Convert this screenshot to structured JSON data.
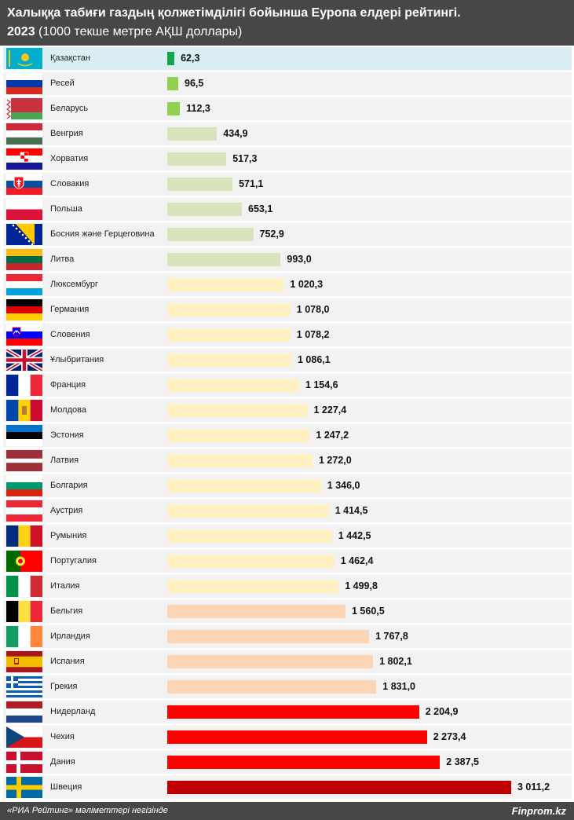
{
  "header": {
    "title": "Халыққа табиғи газдың қолжетімділігі бойынша Еуропа елдері рейтингі.",
    "year": "2023",
    "unit": "(1000 текше метрге АҚШ доллары)"
  },
  "footer": {
    "source": "«РИА Рейтинг» мәліметтері негізінде",
    "brand": "Finprom.kz"
  },
  "colors": {
    "row_bg": "#f2f2f2",
    "row_highlight": "#daeef3",
    "kazakhstan": "#13a64a",
    "low": "#92d050",
    "below_1000": "#d8e4bc",
    "1000_1500": "#fff0c2",
    "1500_2000": "#fbd5b5",
    "above_2000": "#ff0000",
    "max": "#c00000"
  },
  "chart_data": {
    "type": "bar",
    "orientation": "horizontal",
    "title": "Халыққа табиғи газдың қолжетімділігі бойынша Еуропа елдері рейтингі.",
    "subtitle": "2023 (1000 текше метрге АҚШ доллары)",
    "xlim": [
      0,
      3011.2
    ],
    "grid": false,
    "categories": [
      "Қазақстан",
      "Ресей",
      "Беларусь",
      "Венгрия",
      "Хорватия",
      "Словакия",
      "Польша",
      "Босния және Герцеговина",
      "Литва",
      "Люксембург",
      "Германия",
      "Словения",
      "Ұлыбритания",
      "Франция",
      "Молдова",
      "Эстония",
      "Латвия",
      "Болгария",
      "Аустрия",
      "Румыния",
      "Португалия",
      "Италия",
      "Бельгия",
      "Ирландия",
      "Испания",
      "Грекия",
      "Нидерланд",
      "Чехия",
      "Дания",
      "Швеция"
    ],
    "values": [
      62.3,
      96.5,
      112.3,
      434.9,
      517.3,
      571.1,
      653.1,
      752.9,
      993.0,
      1020.3,
      1078.0,
      1078.2,
      1086.1,
      1154.6,
      1227.4,
      1247.2,
      1272.0,
      1346.0,
      1414.5,
      1442.5,
      1462.4,
      1499.8,
      1560.5,
      1767.8,
      1802.1,
      1831.0,
      2204.9,
      2273.4,
      2387.5,
      3011.2
    ],
    "labels": [
      "62,3",
      "96,5",
      "112,3",
      "434,9",
      "517,3",
      "571,1",
      "653,1",
      "752,9",
      "993,0",
      "1 020,3",
      "1 078,0",
      "1 078,2",
      "1 086,1",
      "1 154,6",
      "1 227,4",
      "1 247,2",
      "1 272,0",
      "1 346,0",
      "1 414,5",
      "1 442,5",
      "1 462,4",
      "1 499,8",
      "1 560,5",
      "1 767,8",
      "1 802,1",
      "1 831,0",
      "2 204,9",
      "2 273,4",
      "2 387,5",
      "3 011,2"
    ],
    "bar_colors": [
      "#13a64a",
      "#92d050",
      "#92d050",
      "#d8e4bc",
      "#d8e4bc",
      "#d8e4bc",
      "#d8e4bc",
      "#d8e4bc",
      "#d8e4bc",
      "#fff0c2",
      "#fff0c2",
      "#fff0c2",
      "#fff0c2",
      "#fff0c2",
      "#fff0c2",
      "#fff0c2",
      "#fff0c2",
      "#fff0c2",
      "#fff0c2",
      "#fff0c2",
      "#fff0c2",
      "#fff0c2",
      "#fbd5b5",
      "#fbd5b5",
      "#fbd5b5",
      "#fbd5b5",
      "#ff0000",
      "#ff0000",
      "#ff0000",
      "#c00000"
    ],
    "flags": [
      "kz-flag-icon",
      "ru-flag-icon",
      "by-flag-icon",
      "hu-flag-icon",
      "hr-flag-icon",
      "sk-flag-icon",
      "pl-flag-icon",
      "ba-flag-icon",
      "lt-flag-icon",
      "lu-flag-icon",
      "de-flag-icon",
      "si-flag-icon",
      "gb-flag-icon",
      "fr-flag-icon",
      "md-flag-icon",
      "ee-flag-icon",
      "lv-flag-icon",
      "bg-flag-icon",
      "at-flag-icon",
      "ro-flag-icon",
      "pt-flag-icon",
      "it-flag-icon",
      "be-flag-icon",
      "ie-flag-icon",
      "es-flag-icon",
      "gr-flag-icon",
      "nl-flag-icon",
      "cz-flag-icon",
      "dk-flag-icon",
      "se-flag-icon"
    ],
    "highlight": "Қазақстан"
  }
}
